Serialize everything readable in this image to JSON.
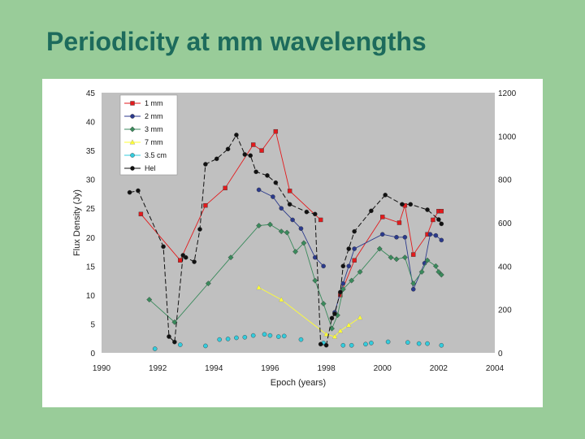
{
  "slide": {
    "title": "Periodicity at mm wavelengths"
  },
  "chart_data": {
    "type": "line",
    "title": "",
    "xlabel": "Epoch (years)",
    "ylabel": "Flux Density (Jy)",
    "xlim": [
      1990,
      2004
    ],
    "ylim": [
      0,
      45
    ],
    "y2lim": [
      0,
      1200
    ],
    "x_ticks": [
      1990,
      1992,
      1994,
      1996,
      1998,
      2000,
      2002,
      2004
    ],
    "y_ticks": [
      0,
      5,
      10,
      15,
      20,
      25,
      30,
      35,
      40,
      45
    ],
    "y2_ticks": [
      0,
      200,
      400,
      600,
      800,
      1000,
      1200
    ],
    "grid": false,
    "legend_placement": "top-left",
    "plot_background": "#c0c0c0",
    "series": [
      {
        "name": "1 mm",
        "color": "#e31a1c",
        "marker": "square",
        "axis": "left",
        "connected": true,
        "x": [
          1991.4,
          1992.8,
          1993.7,
          1994.4,
          1995.4,
          1995.7,
          1996.2,
          1996.7,
          1997.8
        ],
        "y": [
          24,
          16,
          25.5,
          28.5,
          36,
          35,
          38.3,
          28,
          23
        ]
      },
      {
        "name": "1 mm",
        "color": "#e31a1c",
        "marker": "square",
        "axis": "left",
        "connected": true,
        "x": [
          1998.5,
          1999.0,
          2000.0,
          2000.6,
          2000.8,
          2001.1,
          2001.6,
          2001.8,
          2002.0,
          2002.1
        ],
        "y": [
          10,
          16,
          23.5,
          22.5,
          25.5,
          17,
          20.5,
          23,
          24.5,
          24.5
        ]
      },
      {
        "name": "2 mm",
        "color": "#2b3a8c",
        "marker": "circle",
        "axis": "left",
        "connected": true,
        "x": [
          1995.6,
          1996.1,
          1996.4,
          1996.8,
          1997.1,
          1997.6,
          1997.9
        ],
        "y": [
          28.2,
          27,
          25,
          23,
          21.5,
          16.5,
          15
        ]
      },
      {
        "name": "2 mm",
        "color": "#2b3a8c",
        "marker": "circle",
        "axis": "left",
        "connected": true,
        "x": [
          1998.3,
          1998.6,
          1998.8,
          1999.0,
          2000.0,
          2000.5,
          2000.8,
          2001.1,
          2001.5,
          2001.7,
          2001.9,
          2002.1
        ],
        "y": [
          7,
          12,
          15,
          18,
          20.5,
          20,
          20,
          11,
          15.5,
          20.5,
          20.3,
          19.5
        ]
      },
      {
        "name": "3 mm",
        "color": "#3a8a5c",
        "marker": "diamond",
        "axis": "left",
        "connected": true,
        "x": [
          1991.7,
          1992.6,
          1993.8,
          1994.6,
          1995.6,
          1996.0,
          1996.4,
          1996.6,
          1996.9,
          1997.2,
          1997.6,
          1997.9,
          1998.2,
          1998.4,
          1998.6,
          1998.9,
          1999.2,
          1999.9,
          2000.3,
          2000.5,
          2000.8,
          2001.1,
          2001.4,
          2001.6,
          2001.9,
          2002.0,
          2002.1
        ],
        "y": [
          9.2,
          5.3,
          12,
          16.5,
          22,
          22.2,
          21,
          20.8,
          17.5,
          19,
          12.5,
          8.5,
          4.2,
          6.5,
          11,
          12.5,
          14,
          18,
          16.5,
          16.2,
          16.5,
          12,
          14,
          16,
          15,
          14,
          13.5
        ]
      },
      {
        "name": "7 mm",
        "color": "#ffff33",
        "marker": "triangle",
        "axis": "left",
        "connected": true,
        "x": [
          1995.6,
          1996.4,
          1998.0,
          1998.3,
          1998.5,
          1998.8,
          1999.2
        ],
        "y": [
          11.3,
          9.2,
          3.2,
          2.8,
          3.8,
          4.8,
          6.1
        ]
      },
      {
        "name": "3.5 cm",
        "color": "#33ccdd",
        "marker": "circle",
        "axis": "left",
        "connected": false,
        "x": [
          1991.9,
          1992.8,
          1993.7,
          1994.2,
          1994.5,
          1994.8,
          1995.1,
          1995.4,
          1995.8,
          1996.0,
          1996.3,
          1996.5,
          1997.1,
          1997.9,
          1998.6,
          1998.9,
          1999.4,
          1999.6,
          2000.2,
          2000.9,
          2001.3,
          2001.6,
          2002.1
        ],
        "y": [
          0.7,
          1.4,
          1.2,
          2.3,
          2.4,
          2.6,
          2.7,
          3.0,
          3.2,
          3.0,
          2.8,
          2.9,
          2.3,
          1.7,
          1.3,
          1.3,
          1.5,
          1.7,
          1.9,
          1.8,
          1.6,
          1.6,
          1.3
        ]
      },
      {
        "name": "Hel",
        "color": "#111111",
        "marker": "circle",
        "axis": "right",
        "connected": true,
        "x": [
          1991.0,
          1991.3,
          1992.2,
          1992.4,
          1992.6,
          1992.9,
          1993.0,
          1993.3,
          1993.5,
          1993.7,
          1994.1,
          1994.5,
          1994.8,
          1995.1,
          1995.3,
          1995.5,
          1995.9,
          1996.2,
          1996.7,
          1997.3,
          1997.6,
          1997.8,
          1998.0,
          1998.2,
          1998.3,
          1998.5,
          1998.6,
          1998.8,
          1999.0,
          1999.6,
          2000.1,
          2000.7,
          2001.0,
          2001.6,
          2002.0,
          2002.1
        ],
        "y": [
          740,
          748,
          490,
          75,
          50,
          450,
          440,
          420,
          570,
          870,
          895,
          940,
          1005,
          915,
          910,
          835,
          818,
          785,
          685,
          650,
          640,
          40,
          35,
          160,
          180,
          280,
          400,
          480,
          560,
          655,
          728,
          685,
          685,
          660,
          615,
          595
        ]
      }
    ]
  }
}
